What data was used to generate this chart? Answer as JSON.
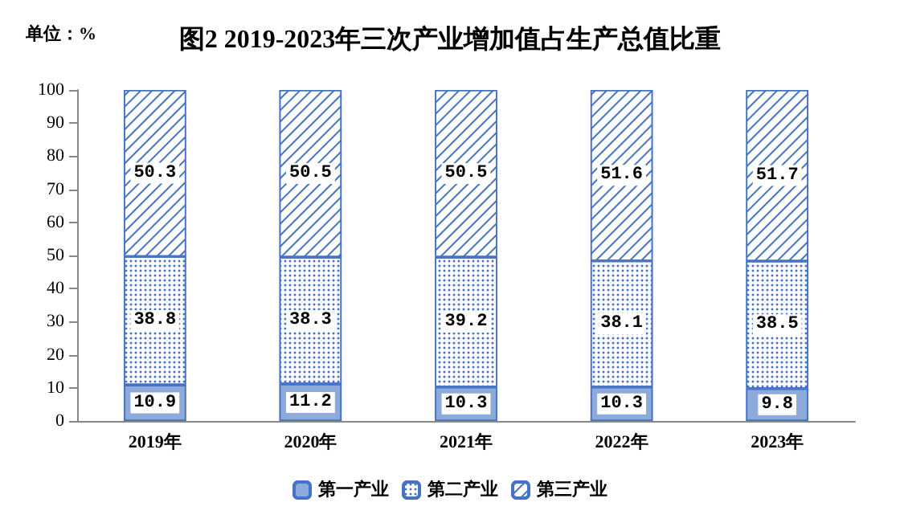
{
  "chart_data": {
    "type": "bar",
    "title": "图2 2019-2023年三次产业增加值占生产总值比重",
    "annotations": [
      "单位：%"
    ],
    "categories": [
      "2019年",
      "2020年",
      "2021年",
      "2022年",
      "2023年"
    ],
    "stacked": true,
    "data_labels": true,
    "legend": "bottom",
    "grid": false,
    "ylim": [
      0,
      100
    ],
    "yticks": [
      0,
      10,
      20,
      30,
      40,
      50,
      60,
      70,
      80,
      90,
      100
    ],
    "series": [
      {
        "name": "第一产业",
        "color": "#8eaadb",
        "values": [
          10.9,
          11.2,
          10.3,
          10.3,
          9.8
        ]
      },
      {
        "name": "第二产业",
        "color": "#4472c4",
        "values": [
          38.8,
          38.3,
          39.2,
          38.1,
          38.5
        ]
      },
      {
        "name": "第三产业",
        "color": "#4472c4",
        "values": [
          50.3,
          50.5,
          50.5,
          51.6,
          51.7
        ]
      }
    ]
  }
}
